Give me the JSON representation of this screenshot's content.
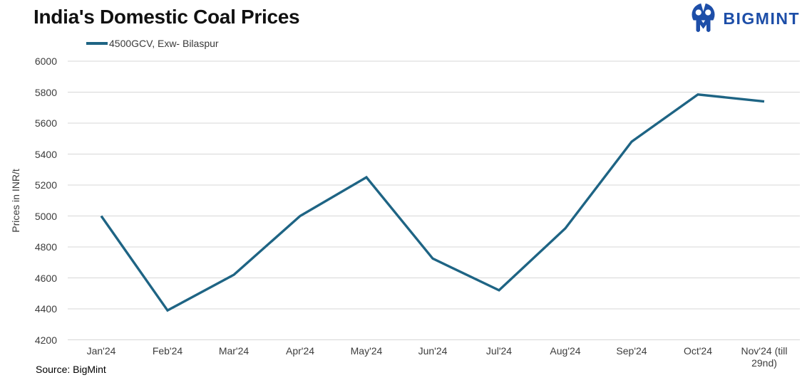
{
  "header": {
    "title": "India's Domestic Coal Prices",
    "brand": "BIGMINT"
  },
  "legend": {
    "series_label": "4500GCV, Exw- Bilaspur"
  },
  "footer": {
    "source": "Source: BigMint"
  },
  "colors": {
    "line": "#1e6484",
    "brand_blue": "#1d4ea8",
    "gridline": "#d7d7d7",
    "axis_text": "#3d3d3d"
  },
  "chart_data": {
    "type": "line",
    "title": "India's Domestic Coal Prices",
    "xlabel": "",
    "ylabel": "Prices in INR/t",
    "categories": [
      "Jan'24",
      "Feb'24",
      "Mar'24",
      "Apr'24",
      "May'24",
      "Jun'24",
      "Jul'24",
      "Aug'24",
      "Sep'24",
      "Oct'24",
      "Nov'24 (till 29nd)"
    ],
    "series": [
      {
        "name": "4500GCV, Exw- Bilaspur",
        "values": [
          5000,
          4390,
          4620,
          5000,
          5250,
          4725,
          4520,
          4920,
          5480,
          5785,
          5740
        ]
      }
    ],
    "ylim": [
      4200,
      6000
    ],
    "ytick_step": 200,
    "grid": true,
    "legend_position": "top-left"
  }
}
